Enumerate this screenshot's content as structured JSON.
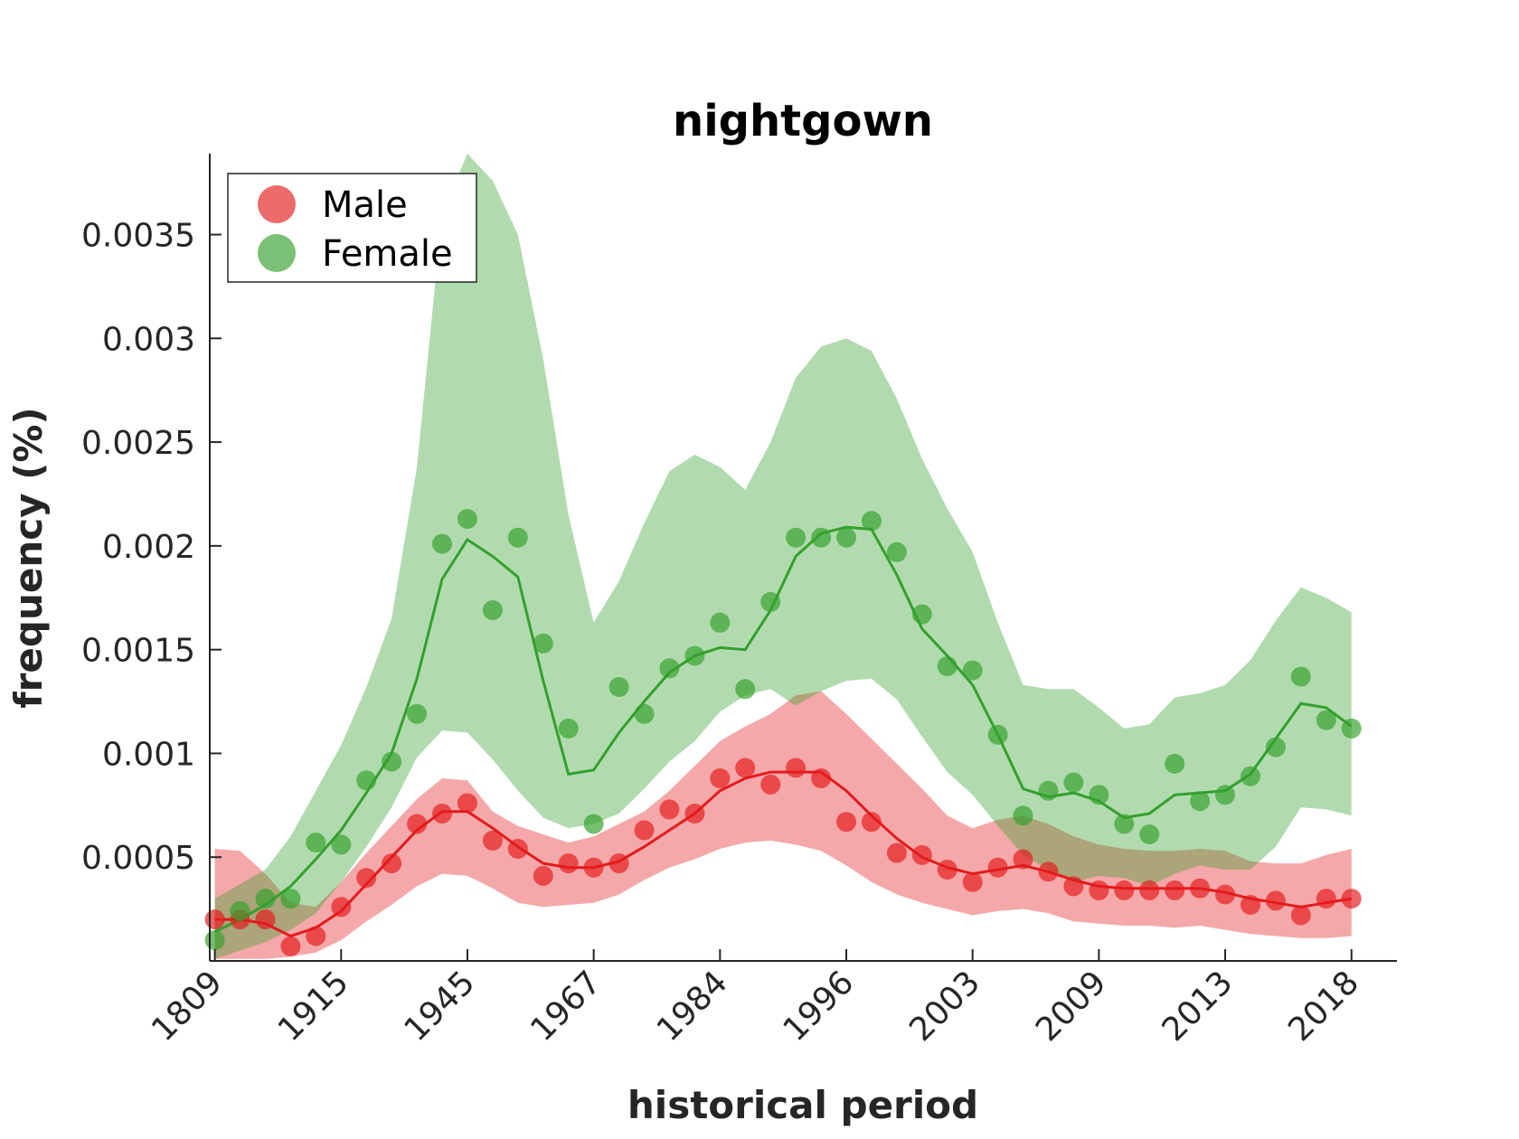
{
  "chart_data": {
    "type": "line",
    "title": "nightgown",
    "xlabel": "historical period",
    "ylabel": "frequency (%)",
    "x_tick_labels": [
      "1809",
      "1915",
      "1945",
      "1967",
      "1984",
      "1996",
      "2003",
      "2009",
      "2013",
      "2018"
    ],
    "y_ticks": [
      0.0005,
      0.001,
      0.0015,
      0.002,
      0.0025,
      0.003,
      0.0035
    ],
    "y_tick_labels": [
      "0.0005",
      "0.001",
      "0.0015",
      "0.002",
      "0.0025",
      "0.003",
      "0.0035"
    ],
    "ylim": [
      0,
      0.00389
    ],
    "xlim": [
      -0.2,
      46.8
    ],
    "grid": false,
    "legend_position": "top-left",
    "point_index": [
      0,
      1,
      2,
      3,
      4,
      5,
      6,
      7,
      8,
      9,
      10,
      11,
      12,
      13,
      14,
      15,
      16,
      17,
      18,
      19,
      20,
      21,
      22,
      23,
      24,
      25,
      26,
      27,
      28,
      29,
      30,
      31,
      32,
      33,
      34,
      35,
      36,
      37,
      38,
      39,
      40,
      41,
      42,
      43,
      44,
      45
    ],
    "series": [
      {
        "name": "Male",
        "color": "#e41a1c",
        "points": [
          0.0002,
          0.0002,
          0.0002,
          7e-05,
          0.00012,
          0.00026,
          0.0004,
          0.00047,
          0.00066,
          0.00071,
          0.00076,
          0.00058,
          0.00054,
          0.00041,
          0.00047,
          0.00045,
          0.00047,
          0.00063,
          0.00073,
          0.00071,
          0.00088,
          0.00093,
          0.00085,
          0.00093,
          0.00088,
          0.00067,
          0.00067,
          0.00052,
          0.00051,
          0.00044,
          0.00038,
          0.00045,
          0.00049,
          0.00043,
          0.00036,
          0.00034,
          0.00034,
          0.00034,
          0.00034,
          0.00035,
          0.00032,
          0.00027,
          0.00029,
          0.00022,
          0.0003,
          0.0003
        ],
        "smooth": [
          0.0002,
          0.0002,
          0.00018,
          0.00012,
          0.00016,
          0.00024,
          0.00037,
          0.0005,
          0.00063,
          0.00072,
          0.00072,
          0.00064,
          0.00055,
          0.00047,
          0.00045,
          0.00045,
          0.00048,
          0.00055,
          0.00063,
          0.00071,
          0.00082,
          0.00088,
          0.00091,
          0.00091,
          0.00091,
          0.00082,
          0.0007,
          0.00059,
          0.0005,
          0.00045,
          0.00042,
          0.00044,
          0.00046,
          0.00043,
          0.00039,
          0.00036,
          0.00035,
          0.00035,
          0.00035,
          0.00035,
          0.00033,
          0.0003,
          0.00028,
          0.00026,
          0.00028,
          0.0003
        ],
        "band_upper": [
          0.00054,
          0.00053,
          0.00042,
          0.00028,
          0.00026,
          0.00038,
          0.00052,
          0.00065,
          0.00078,
          0.00088,
          0.00087,
          0.00072,
          0.00065,
          0.00061,
          0.00057,
          0.0006,
          0.00066,
          0.00072,
          0.00082,
          0.00094,
          0.00106,
          0.00113,
          0.00119,
          0.00128,
          0.0013,
          0.00119,
          0.00107,
          0.00095,
          0.00083,
          0.0007,
          0.00064,
          0.00068,
          0.0007,
          0.00066,
          0.0006,
          0.00056,
          0.00054,
          0.00053,
          0.00053,
          0.00054,
          0.00053,
          0.00048,
          0.00047,
          0.00047,
          0.00051,
          0.00054
        ],
        "band_lower": [
          1e-05,
          1e-05,
          1e-05,
          2e-05,
          4e-05,
          0.0001,
          0.00019,
          0.00027,
          0.00036,
          0.00042,
          0.00041,
          0.00035,
          0.00028,
          0.00026,
          0.00027,
          0.00028,
          0.00032,
          0.00039,
          0.00045,
          0.00049,
          0.00054,
          0.00057,
          0.00058,
          0.00056,
          0.00053,
          0.00046,
          0.00038,
          0.00032,
          0.00028,
          0.00025,
          0.00022,
          0.00024,
          0.00025,
          0.00023,
          0.00019,
          0.00018,
          0.00017,
          0.00017,
          0.00016,
          0.00017,
          0.00015,
          0.00013,
          0.00012,
          0.00011,
          0.00011,
          0.00012
        ]
      },
      {
        "name": "Female",
        "color": "#33a02c",
        "points": [
          0.0001,
          0.00024,
          0.0003,
          0.0003,
          0.00057,
          0.00056,
          0.00087,
          0.00096,
          0.00119,
          0.00201,
          0.00213,
          0.00169,
          0.00204,
          0.00153,
          0.00112,
          0.00066,
          0.00132,
          0.00119,
          0.00141,
          0.00147,
          0.00163,
          0.00131,
          0.00173,
          0.00204,
          0.00204,
          0.00204,
          0.00212,
          0.00197,
          0.00167,
          0.00142,
          0.0014,
          0.00109,
          0.0007,
          0.00082,
          0.00086,
          0.0008,
          0.00066,
          0.00061,
          0.00095,
          0.00077,
          0.0008,
          0.00089,
          0.00103,
          0.00137,
          0.00116,
          0.00112
        ],
        "smooth": [
          0.00014,
          0.0002,
          0.00027,
          0.00036,
          0.00049,
          0.00063,
          0.00081,
          0.001,
          0.00136,
          0.00184,
          0.00203,
          0.00195,
          0.00185,
          0.00135,
          0.0009,
          0.00092,
          0.0011,
          0.00125,
          0.00139,
          0.00147,
          0.00151,
          0.0015,
          0.00169,
          0.00195,
          0.00206,
          0.00209,
          0.00208,
          0.00186,
          0.0016,
          0.00147,
          0.00133,
          0.00109,
          0.00083,
          0.00079,
          0.00081,
          0.00077,
          0.00069,
          0.00071,
          0.0008,
          0.00081,
          0.00082,
          0.0009,
          0.00107,
          0.00124,
          0.00122,
          0.00113
        ],
        "band_upper": [
          0.0003,
          0.00037,
          0.00044,
          0.0006,
          0.00082,
          0.00104,
          0.00132,
          0.00165,
          0.00238,
          0.0036,
          0.00389,
          0.00376,
          0.0035,
          0.0029,
          0.00215,
          0.00163,
          0.00183,
          0.00211,
          0.00236,
          0.00244,
          0.00238,
          0.00227,
          0.0025,
          0.00281,
          0.00296,
          0.003,
          0.00294,
          0.00271,
          0.00242,
          0.00218,
          0.00197,
          0.00163,
          0.00133,
          0.00131,
          0.00131,
          0.00122,
          0.00112,
          0.00114,
          0.00127,
          0.00129,
          0.00133,
          0.00145,
          0.00164,
          0.0018,
          0.00175,
          0.00168
        ],
        "band_lower": [
          1e-05,
          5e-05,
          9e-05,
          0.00015,
          0.00023,
          0.00038,
          0.00055,
          0.00074,
          0.00098,
          0.00111,
          0.0011,
          0.00097,
          0.00082,
          0.00069,
          0.00064,
          0.00066,
          0.00071,
          0.00083,
          0.00096,
          0.00106,
          0.0012,
          0.00128,
          0.00131,
          0.00123,
          0.0013,
          0.00135,
          0.00136,
          0.00126,
          0.00108,
          0.00091,
          0.0008,
          0.00065,
          0.00051,
          0.00044,
          0.00038,
          0.00041,
          0.0004,
          0.00036,
          0.00042,
          0.00046,
          0.00044,
          0.00044,
          0.00055,
          0.00074,
          0.00073,
          0.0007
        ]
      }
    ]
  }
}
